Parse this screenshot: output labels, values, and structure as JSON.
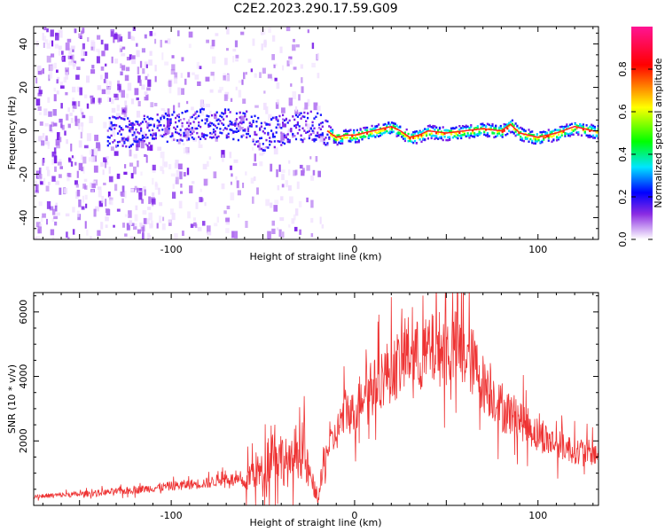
{
  "figure": {
    "title": "C2E2.2023.290.17.59.G09"
  },
  "chart_data": [
    {
      "type": "heatmap",
      "title": "C2E2.2023.290.17.59.G09",
      "xlabel": "Height of straight line (km)",
      "ylabel": "Frequency (Hz)",
      "xlim": [
        -175,
        133
      ],
      "ylim": [
        -50,
        48
      ],
      "x_ticks": [
        -100,
        0,
        100
      ],
      "x_tick_labels": [
        "-100",
        "0",
        "100"
      ],
      "y_ticks": [
        -40,
        -20,
        0,
        20,
        40
      ],
      "y_tick_labels": [
        "-40",
        "-20",
        "0",
        "20",
        "40"
      ],
      "colorbar": {
        "label": "Normalized spectral amplitude",
        "range": [
          0,
          1
        ],
        "ticks": [
          0.0,
          0.2,
          0.4,
          0.6,
          0.8
        ],
        "tick_labels": [
          "0.0",
          "0.2",
          "0.4",
          "0.6",
          "0.8"
        ],
        "colormap": [
          "#ffffff",
          "#8a2be2",
          "#0000ff",
          "#00e5ff",
          "#00ff00",
          "#ffff00",
          "#ff0000",
          "#ff1493"
        ]
      },
      "ridge": {
        "description_values": "dominant frequency (Hz) versus height (km)",
        "x": [
          -120,
          -100,
          -80,
          -60,
          -50,
          -40,
          -30,
          -20,
          -15,
          -10,
          -5,
          0,
          5,
          10,
          15,
          20,
          25,
          30,
          35,
          40,
          50,
          60,
          70,
          80,
          85,
          90,
          95,
          100,
          110,
          120,
          130
        ],
        "y": [
          0,
          2,
          4,
          3,
          -2,
          1,
          2,
          3,
          0,
          -3,
          -2,
          -2,
          -1,
          0,
          1,
          2,
          0,
          -3,
          -2,
          0,
          -1,
          0,
          1,
          0,
          3,
          -1,
          -2,
          -3,
          -1,
          2,
          0
        ]
      },
      "grid": false
    },
    {
      "type": "line",
      "xlabel": "Height of straight line (km)",
      "ylabel": "SNR (10 * v/v)",
      "xlim": [
        -175,
        133
      ],
      "ylim": [
        0,
        6600
      ],
      "x_ticks": [
        -100,
        0,
        100
      ],
      "x_tick_labels": [
        "-100",
        "0",
        "100"
      ],
      "y_ticks": [
        2000,
        4000,
        6000
      ],
      "y_tick_labels": [
        "2000",
        "4000",
        "6000"
      ],
      "line_color": "#ee3333",
      "series": [
        {
          "x": [
            -175,
            -150,
            -125,
            -100,
            -80,
            -70,
            -60,
            -55,
            -50,
            -45,
            -40,
            -35,
            -30,
            -25,
            -20,
            -15,
            -10,
            -5,
            0,
            5,
            10,
            15,
            20,
            25,
            30,
            35,
            40,
            45,
            50,
            55,
            60,
            65,
            70,
            75,
            80,
            90,
            100,
            110,
            120,
            133
          ],
          "y": [
            280,
            350,
            450,
            600,
            700,
            850,
            700,
            1100,
            1000,
            1900,
            1500,
            1200,
            2000,
            1000,
            200,
            1700,
            2200,
            3000,
            2800,
            3700,
            3600,
            4000,
            4200,
            4400,
            4800,
            4600,
            4700,
            4900,
            4800,
            4900,
            4700,
            4400,
            3800,
            3500,
            3000,
            2700,
            2200,
            1900,
            1700,
            1600
          ]
        }
      ],
      "grid": false
    }
  ]
}
